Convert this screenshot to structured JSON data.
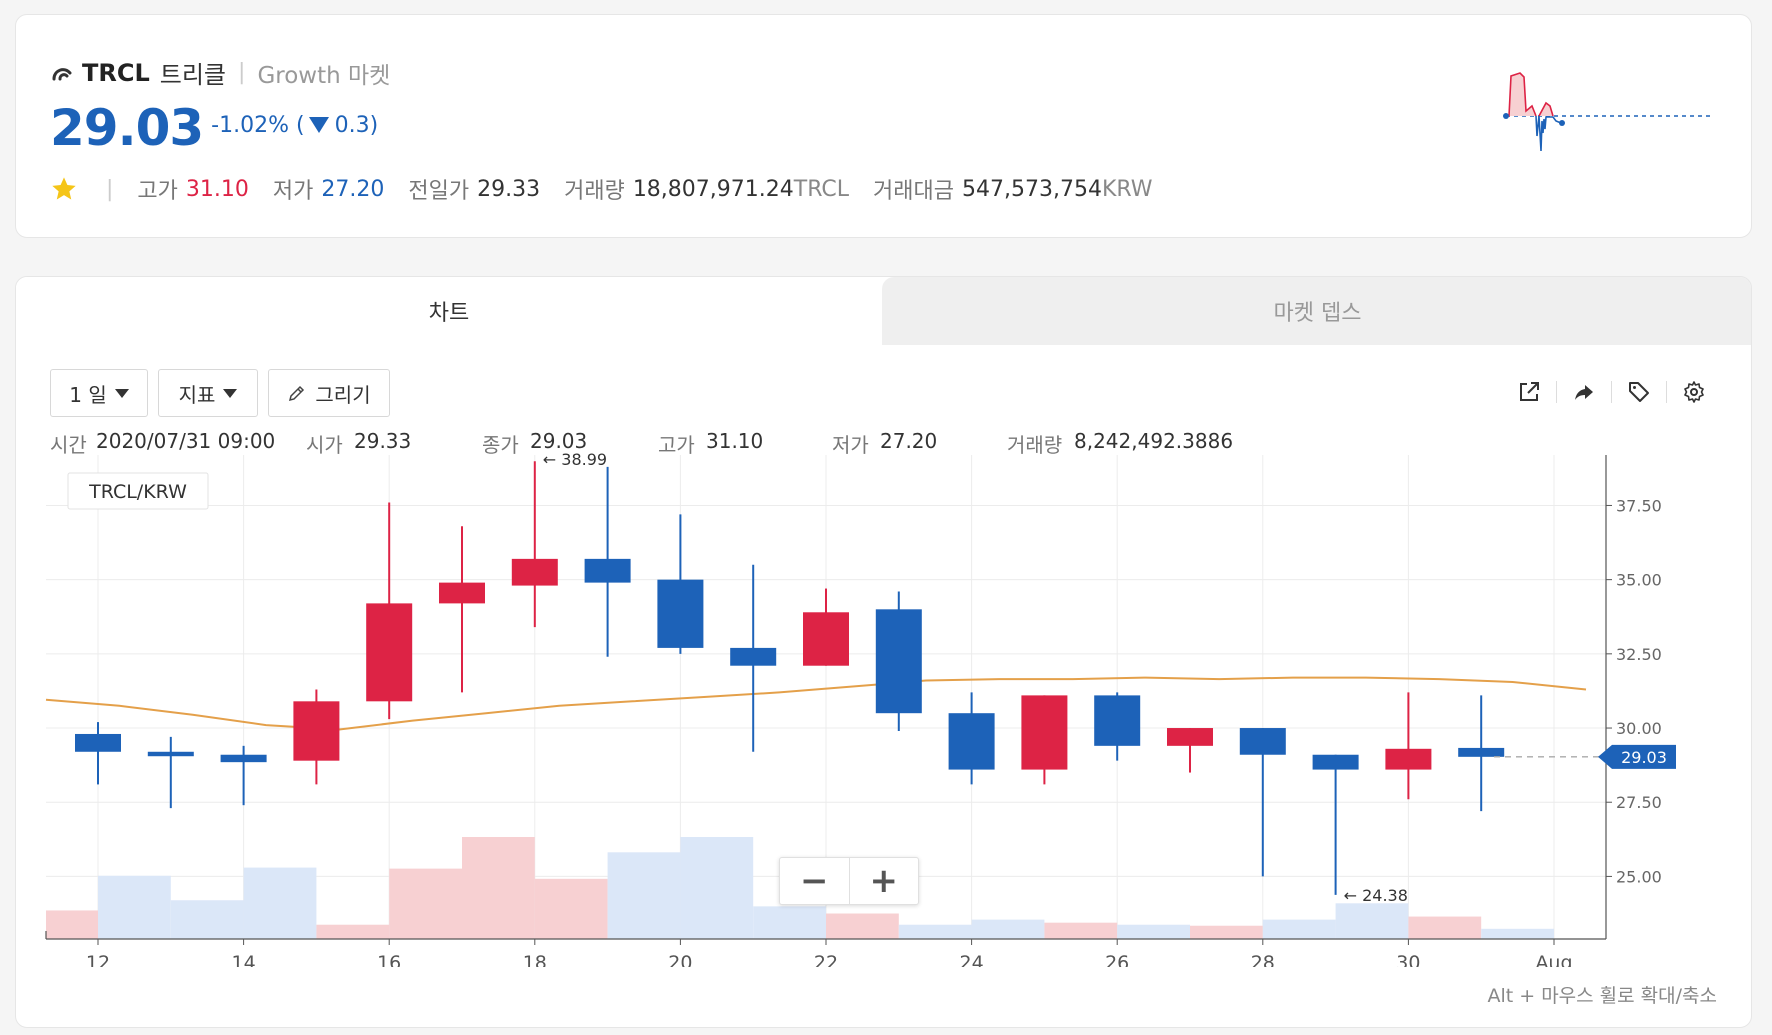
{
  "header": {
    "symbol": "TRCL",
    "name_kr": "트리클",
    "separator": "|",
    "market": "Growth 마켓",
    "price": "29.03",
    "change_pct": "-1.02%",
    "change_paren_open": "(",
    "change_abs": "0.3",
    "change_paren_close": ")",
    "stats": {
      "high_label": "고가",
      "high_value": "31.10",
      "low_label": "저가",
      "low_value": "27.20",
      "prev_label": "전일가",
      "prev_value": "29.33",
      "volume_label": "거래량",
      "volume_value": "18,807,971.24",
      "volume_unit": "TRCL",
      "amount_label": "거래대금",
      "amount_value": "547,573,754",
      "amount_unit": "KRW"
    },
    "colors": {
      "up": "#dd2345",
      "down": "#1d62b8",
      "star": "#f5c518"
    }
  },
  "tabs": {
    "chart": "차트",
    "depth": "마켓 뎁스"
  },
  "toolbar": {
    "interval": "1 일",
    "indicator": "지표",
    "draw": "그리기"
  },
  "ohlc": {
    "time_label": "시간",
    "time_value": "2020/07/31 09:00",
    "open_label": "시가",
    "open_value": "29.33",
    "close_label": "종가",
    "close_value": "29.03",
    "high_label": "고가",
    "high_value": "31.10",
    "low_label": "저가",
    "low_value": "27.20",
    "volume_label": "거래량",
    "volume_value": "8,242,492.3886"
  },
  "hint": "Alt + 마우스 휠로 확대/축소",
  "chart_data": {
    "type": "candlestick",
    "pair_label": "TRCL/KRW",
    "x_ticks": [
      "12",
      "14",
      "16",
      "18",
      "20",
      "22",
      "24",
      "26",
      "28",
      "30",
      "Aug"
    ],
    "y_ticks": [
      "37.50",
      "35.00",
      "32.50",
      "30.00",
      "27.50",
      "25.00"
    ],
    "y_tick_values": [
      37.5,
      35,
      32.5,
      30,
      27.5,
      25
    ],
    "ylim": [
      23.7,
      39.2
    ],
    "current_price": "29.03",
    "high_annotation": "← 38.99",
    "low_annotation": "← 24.38",
    "candles": [
      {
        "day": 12,
        "open": 29.8,
        "close": 29.2,
        "high": 30.2,
        "low": 28.1
      },
      {
        "day": 13,
        "open": 29.2,
        "close": 29.05,
        "high": 29.7,
        "low": 27.3
      },
      {
        "day": 14,
        "open": 29.1,
        "close": 28.85,
        "high": 29.4,
        "low": 27.4
      },
      {
        "day": 15,
        "open": 28.9,
        "close": 30.9,
        "high": 31.3,
        "low": 28.1
      },
      {
        "day": 16,
        "open": 30.9,
        "close": 34.2,
        "high": 37.6,
        "low": 30.3
      },
      {
        "day": 17,
        "open": 34.2,
        "close": 34.9,
        "high": 36.8,
        "low": 31.2
      },
      {
        "day": 18,
        "open": 34.8,
        "close": 35.7,
        "high": 38.99,
        "low": 33.4
      },
      {
        "day": 19,
        "open": 35.7,
        "close": 34.9,
        "high": 38.8,
        "low": 32.4
      },
      {
        "day": 20,
        "open": 35.0,
        "close": 32.7,
        "high": 37.2,
        "low": 32.5
      },
      {
        "day": 21,
        "open": 32.7,
        "close": 32.1,
        "high": 35.5,
        "low": 29.2
      },
      {
        "day": 22,
        "open": 32.1,
        "close": 33.9,
        "high": 34.7,
        "low": 32.1
      },
      {
        "day": 23,
        "open": 34.0,
        "close": 30.5,
        "high": 34.6,
        "low": 29.9
      },
      {
        "day": 24,
        "open": 30.5,
        "close": 28.6,
        "high": 31.2,
        "low": 28.1
      },
      {
        "day": 25,
        "open": 28.6,
        "close": 31.1,
        "high": 31.1,
        "low": 28.1
      },
      {
        "day": 26,
        "open": 31.1,
        "close": 29.4,
        "high": 31.2,
        "low": 28.9
      },
      {
        "day": 27,
        "open": 29.4,
        "close": 30.0,
        "high": 30.0,
        "low": 28.5
      },
      {
        "day": 28,
        "open": 30.0,
        "close": 29.1,
        "high": 30.0,
        "low": 25.0
      },
      {
        "day": 29,
        "open": 29.1,
        "close": 28.6,
        "high": 29.1,
        "low": 24.38
      },
      {
        "day": 30,
        "open": 28.6,
        "close": 29.3,
        "high": 31.2,
        "low": 27.6
      },
      {
        "day": 31,
        "open": 29.33,
        "close": 29.03,
        "high": 31.1,
        "low": 27.2
      }
    ],
    "moving_average": [
      30.95,
      30.75,
      30.45,
      30.1,
      29.95,
      30.25,
      30.5,
      30.75,
      30.9,
      31.05,
      31.2,
      31.4,
      31.6,
      31.65,
      31.65,
      31.7,
      31.65,
      31.7,
      31.7,
      31.65,
      31.55,
      31.3
    ],
    "volume": [
      {
        "day": 11.5,
        "value": 0.28,
        "up": true
      },
      {
        "day": 12.5,
        "value": 0.62,
        "up": false
      },
      {
        "day": 13.5,
        "value": 0.38,
        "up": false
      },
      {
        "day": 14.5,
        "value": 0.7,
        "up": false
      },
      {
        "day": 15.5,
        "value": 0.14,
        "up": true
      },
      {
        "day": 16.5,
        "value": 0.69,
        "up": true
      },
      {
        "day": 17.5,
        "value": 1.0,
        "up": true
      },
      {
        "day": 18.5,
        "value": 0.59,
        "up": true
      },
      {
        "day": 19.5,
        "value": 0.85,
        "up": false
      },
      {
        "day": 20.5,
        "value": 1.0,
        "up": false
      },
      {
        "day": 21.5,
        "value": 0.32,
        "up": false
      },
      {
        "day": 22.5,
        "value": 0.25,
        "up": true
      },
      {
        "day": 23.5,
        "value": 0.14,
        "up": false
      },
      {
        "day": 24.5,
        "value": 0.19,
        "up": false
      },
      {
        "day": 25.5,
        "value": 0.16,
        "up": true
      },
      {
        "day": 26.5,
        "value": 0.14,
        "up": false
      },
      {
        "day": 27.5,
        "value": 0.13,
        "up": true
      },
      {
        "day": 28.5,
        "value": 0.19,
        "up": false
      },
      {
        "day": 29.5,
        "value": 0.35,
        "up": false
      },
      {
        "day": 30.5,
        "value": 0.22,
        "up": true
      },
      {
        "day": 31.5,
        "value": 0.1,
        "up": false
      }
    ],
    "colors": {
      "up": "#dd2345",
      "down": "#1d62b8",
      "ma": "#e4a04a",
      "vol_up": "#f7d0d2",
      "vol_down": "#dbe7f8"
    },
    "grid": true
  }
}
